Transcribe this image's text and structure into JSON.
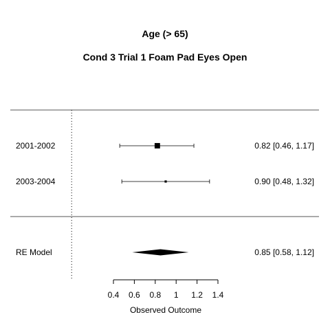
{
  "chart_data": {
    "type": "forest",
    "title": "Age (> 65)",
    "subtitle": "Cond 3 Trial 1 Foam Pad Eyes Open",
    "xlabel": "Observed Outcome",
    "xlim": [
      0.4,
      1.4
    ],
    "xticks": [
      "0.4",
      "0.6",
      "0.8",
      "1",
      "1.2",
      "1.4"
    ],
    "reference_line": 0,
    "studies": [
      {
        "label": "2001-2002",
        "estimate": 0.82,
        "ci_lower": 0.46,
        "ci_upper": 1.17,
        "weight": 0.75,
        "text": "0.82 [0.46, 1.17]"
      },
      {
        "label": "2003-2004",
        "estimate": 0.9,
        "ci_lower": 0.48,
        "ci_upper": 1.32,
        "weight": 0.2,
        "text": "0.90 [0.48, 1.32]"
      }
    ],
    "summary": {
      "label": "RE Model",
      "estimate": 0.85,
      "ci_lower": 0.58,
      "ci_upper": 1.12,
      "text": "0.85 [0.58, 1.12]"
    }
  }
}
